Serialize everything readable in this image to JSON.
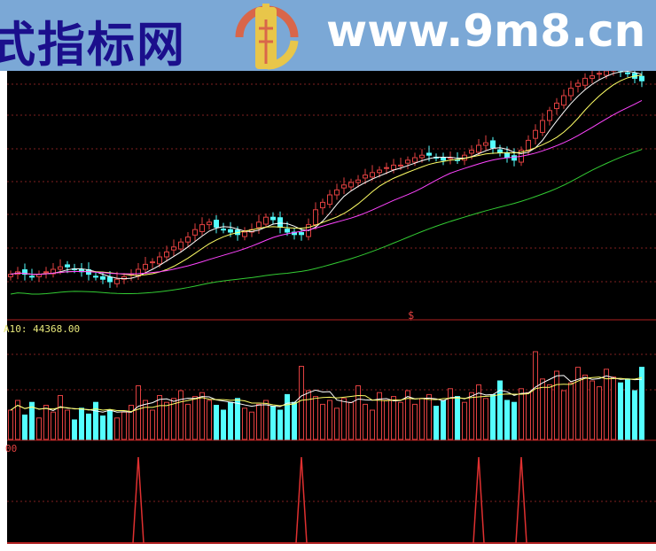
{
  "banner": {
    "site_name": "式指标网",
    "url": "www.9m8.cn",
    "logo_text": "www.9m8.cn",
    "color": "#7ba8d6"
  },
  "volume_pane": {
    "label": "A10: 44368.00"
  },
  "indicator_pane": {
    "label": "00"
  },
  "marker": {
    "symbol": "$"
  },
  "colors": {
    "up": "#e04040",
    "down": "#54ffff",
    "ma5": "#ffffff",
    "ma10": "#ffff66",
    "ma20": "#ff44ff",
    "ma60": "#33cc33",
    "grid": "#802020",
    "signal": "#e03030"
  },
  "chart_data": {
    "type": "candlestick",
    "closes": [
      18,
      19,
      18,
      17,
      18,
      19,
      20,
      21,
      21,
      20,
      19,
      18,
      17,
      16,
      15,
      16,
      17,
      18,
      20,
      22,
      23,
      25,
      27,
      29,
      31,
      33,
      36,
      38,
      39,
      37,
      36,
      35,
      34,
      35,
      36,
      39,
      41,
      40,
      37,
      35,
      34,
      34,
      38,
      44,
      47,
      50,
      52,
      54,
      55,
      56,
      58,
      59,
      60,
      61,
      62,
      62,
      64,
      65,
      66,
      66,
      65,
      64,
      65,
      64,
      66,
      68,
      70,
      71,
      69,
      67,
      65,
      64,
      68,
      72,
      76,
      80,
      84,
      87,
      90,
      93,
      95,
      97,
      98,
      99,
      100,
      101,
      100,
      99,
      97,
      96
    ],
    "volumes": [
      30,
      40,
      25,
      38,
      22,
      35,
      28,
      45,
      30,
      20,
      32,
      26,
      38,
      24,
      30,
      22,
      28,
      35,
      55,
      40,
      30,
      45,
      38,
      42,
      50,
      36,
      44,
      48,
      40,
      35,
      30,
      38,
      42,
      32,
      28,
      36,
      40,
      34,
      30,
      46,
      38,
      75,
      50,
      44,
      36,
      40,
      32,
      42,
      38,
      55,
      36,
      30,
      48,
      40,
      44,
      38,
      50,
      36,
      42,
      46,
      34,
      40,
      52,
      44,
      38,
      48,
      56,
      42,
      46,
      60,
      40,
      38,
      52,
      48,
      90,
      62,
      56,
      70,
      50,
      58,
      74,
      66,
      60,
      54,
      72,
      64,
      58,
      62,
      50,
      74
    ],
    "signals": [
      17,
      40,
      65,
      71
    ]
  }
}
